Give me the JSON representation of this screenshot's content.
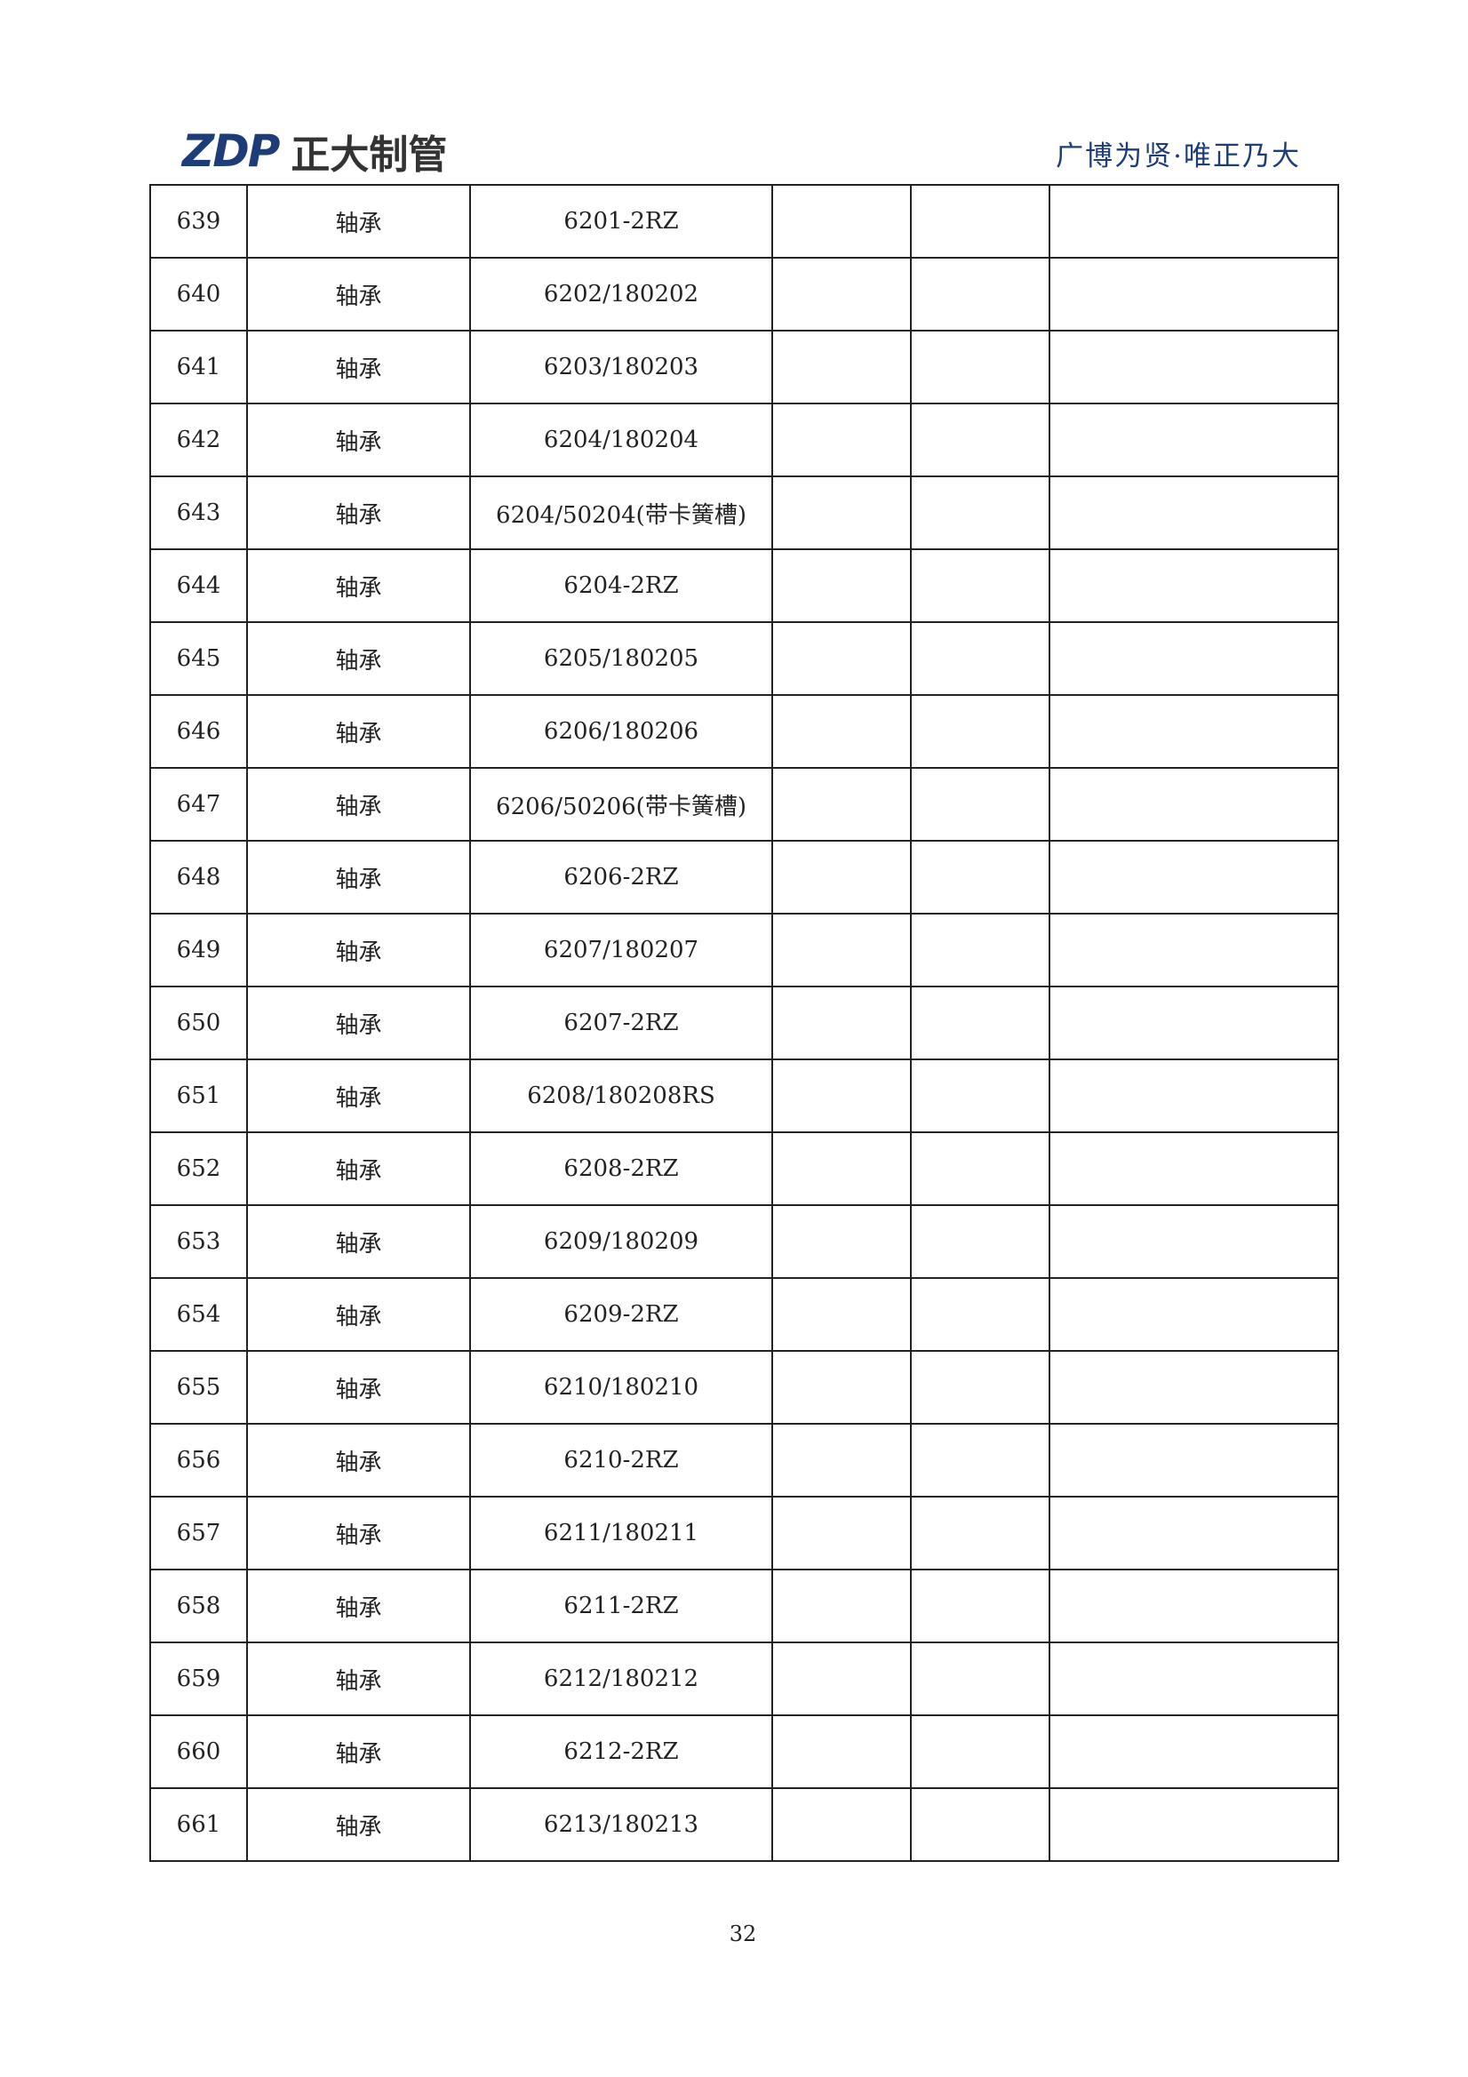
{
  "header": {
    "logo_mark": "ZDP",
    "logo_text": "正大制管",
    "slogan": "广博为贤·唯正乃大"
  },
  "table": {
    "rows": [
      [
        "639",
        "轴承",
        "6201-2RZ"
      ],
      [
        "640",
        "轴承",
        "6202/180202"
      ],
      [
        "641",
        "轴承",
        "6203/180203"
      ],
      [
        "642",
        "轴承",
        "6204/180204"
      ],
      [
        "643",
        "轴承",
        "6204/50204(带卡簧槽)"
      ],
      [
        "644",
        "轴承",
        "6204-2RZ"
      ],
      [
        "645",
        "轴承",
        "6205/180205"
      ],
      [
        "646",
        "轴承",
        "6206/180206"
      ],
      [
        "647",
        "轴承",
        "6206/50206(带卡簧槽)"
      ],
      [
        "648",
        "轴承",
        "6206-2RZ"
      ],
      [
        "649",
        "轴承",
        "6207/180207"
      ],
      [
        "650",
        "轴承",
        "6207-2RZ"
      ],
      [
        "651",
        "轴承",
        "6208/180208RS"
      ],
      [
        "652",
        "轴承",
        "6208-2RZ"
      ],
      [
        "653",
        "轴承",
        "6209/180209"
      ],
      [
        "654",
        "轴承",
        "6209-2RZ"
      ],
      [
        "655",
        "轴承",
        "6210/180210"
      ],
      [
        "656",
        "轴承",
        "6210-2RZ"
      ],
      [
        "657",
        "轴承",
        "6211/180211"
      ],
      [
        "658",
        "轴承",
        "6211-2RZ"
      ],
      [
        "659",
        "轴承",
        "6212/180212"
      ],
      [
        "660",
        "轴承",
        "6212-2RZ"
      ],
      [
        "661",
        "轴承",
        "6213/180213"
      ]
    ]
  },
  "footer": {
    "page_number": "32"
  }
}
